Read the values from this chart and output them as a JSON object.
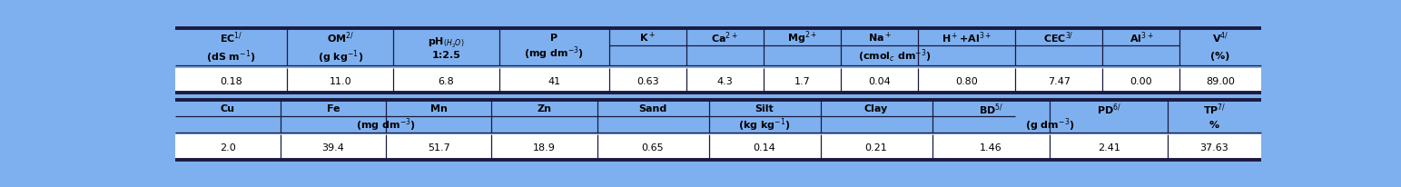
{
  "bg_color": "#7EB0F0",
  "white": "#FFFFFF",
  "border_dark": "#1a1a40",
  "thick_lw": 2.8,
  "thin_lw": 0.9,
  "fs": 8.0,
  "row1_data": [
    "0.18",
    "11.0",
    "6.8",
    "41",
    "0.63",
    "4.3",
    "1.7",
    "0.04",
    "0.80",
    "7.47",
    "0.00",
    "89.00"
  ],
  "row2_data": [
    "2.0",
    "39.4",
    "51.7",
    "18.9",
    "0.65",
    "0.14",
    "0.21",
    "1.46",
    "2.41",
    "37.63"
  ],
  "top_widths": [
    9.0,
    8.5,
    8.5,
    8.8,
    6.2,
    6.2,
    6.2,
    6.2,
    7.8,
    7.0,
    6.2,
    6.5
  ],
  "bot_widths": [
    8.5,
    8.5,
    8.5,
    8.5,
    9.0,
    9.0,
    9.0,
    9.5,
    9.5,
    7.5
  ]
}
